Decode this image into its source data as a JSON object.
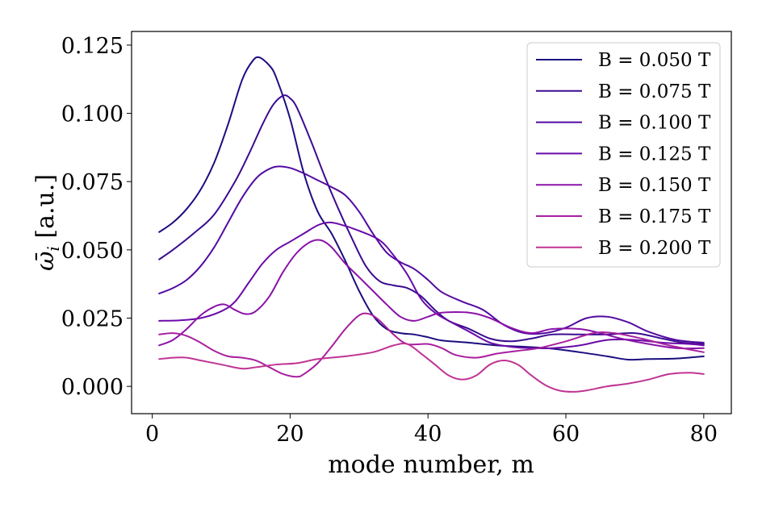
{
  "chart_data": {
    "type": "line",
    "xlabel": "mode number, m",
    "ylabel": "ω̄",
    "ylabel_sub": "i",
    "ylabel_suffix": " [a.u.]",
    "xlim": [
      -3,
      84
    ],
    "ylim": [
      -0.01,
      0.13
    ],
    "xticks": [
      0,
      20,
      40,
      60,
      80
    ],
    "xtick_labels": [
      "0",
      "20",
      "40",
      "60",
      "80"
    ],
    "yticks": [
      0.0,
      0.025,
      0.05,
      0.075,
      0.1,
      0.125
    ],
    "ytick_labels": [
      "0.000",
      "0.025",
      "0.050",
      "0.075",
      "0.100",
      "0.125"
    ],
    "grid": false,
    "legend_position": "top-right",
    "series": [
      {
        "name": "B = 0.050 T",
        "color": "#1b0d80",
        "points": [
          [
            1,
            0.0565
          ],
          [
            3,
            0.06
          ],
          [
            5,
            0.065
          ],
          [
            7,
            0.072
          ],
          [
            9,
            0.082
          ],
          [
            11,
            0.096
          ],
          [
            13,
            0.112
          ],
          [
            14.5,
            0.119
          ],
          [
            15.5,
            0.1205
          ],
          [
            17,
            0.1175
          ],
          [
            18,
            0.113
          ],
          [
            20,
            0.098
          ],
          [
            22,
            0.078
          ],
          [
            24,
            0.064
          ],
          [
            26,
            0.056
          ],
          [
            28,
            0.046
          ],
          [
            30,
            0.035
          ],
          [
            32,
            0.026
          ],
          [
            34,
            0.021
          ],
          [
            36,
            0.0195
          ],
          [
            38,
            0.019
          ],
          [
            40,
            0.018
          ],
          [
            42,
            0.0168
          ],
          [
            46,
            0.016
          ],
          [
            50,
            0.015
          ],
          [
            54,
            0.0145
          ],
          [
            58,
            0.0138
          ],
          [
            62,
            0.0125
          ],
          [
            66,
            0.011
          ],
          [
            69,
            0.0098
          ],
          [
            72,
            0.01
          ],
          [
            76,
            0.0102
          ],
          [
            80,
            0.011
          ]
        ]
      },
      {
        "name": "B = 0.075 T",
        "color": "#3a0c90",
        "points": [
          [
            1,
            0.0465
          ],
          [
            3,
            0.05
          ],
          [
            6,
            0.056
          ],
          [
            9,
            0.063
          ],
          [
            12,
            0.075
          ],
          [
            14,
            0.085
          ],
          [
            16,
            0.096
          ],
          [
            17.5,
            0.103
          ],
          [
            19,
            0.1065
          ],
          [
            20,
            0.1055
          ],
          [
            21,
            0.102
          ],
          [
            23,
            0.09
          ],
          [
            25,
            0.077
          ],
          [
            27,
            0.065
          ],
          [
            29,
            0.054
          ],
          [
            31,
            0.044
          ],
          [
            33,
            0.0385
          ],
          [
            35,
            0.037
          ],
          [
            37,
            0.036
          ],
          [
            39,
            0.033
          ],
          [
            41,
            0.028
          ],
          [
            43,
            0.024
          ],
          [
            46,
            0.021
          ],
          [
            49,
            0.0175
          ],
          [
            52,
            0.0165
          ],
          [
            55,
            0.0175
          ],
          [
            58,
            0.019
          ],
          [
            62,
            0.019
          ],
          [
            66,
            0.019
          ],
          [
            70,
            0.0195
          ],
          [
            74,
            0.0175
          ],
          [
            77,
            0.016
          ],
          [
            80,
            0.0155
          ]
        ]
      },
      {
        "name": "B = 0.100 T",
        "color": "#520aa0",
        "points": [
          [
            1,
            0.034
          ],
          [
            3,
            0.036
          ],
          [
            5,
            0.039
          ],
          [
            7,
            0.044
          ],
          [
            9,
            0.051
          ],
          [
            11,
            0.06
          ],
          [
            13,
            0.069
          ],
          [
            15,
            0.076
          ],
          [
            16.5,
            0.079
          ],
          [
            18,
            0.0805
          ],
          [
            20,
            0.08
          ],
          [
            22,
            0.078
          ],
          [
            24,
            0.0755
          ],
          [
            26,
            0.073
          ],
          [
            28,
            0.07
          ],
          [
            30,
            0.064
          ],
          [
            32,
            0.056
          ],
          [
            34,
            0.049
          ],
          [
            36,
            0.0455
          ],
          [
            38,
            0.043
          ],
          [
            40,
            0.039
          ],
          [
            42,
            0.0345
          ],
          [
            45,
            0.031
          ],
          [
            48,
            0.028
          ],
          [
            51,
            0.0225
          ],
          [
            54,
            0.0195
          ],
          [
            57,
            0.0195
          ],
          [
            60,
            0.0215
          ],
          [
            63,
            0.025
          ],
          [
            66,
            0.0255
          ],
          [
            69,
            0.0235
          ],
          [
            72,
            0.02
          ],
          [
            76,
            0.017
          ],
          [
            80,
            0.016
          ]
        ]
      },
      {
        "name": "B = 0.125 T",
        "color": "#6a0aa8",
        "points": [
          [
            1,
            0.024
          ],
          [
            4,
            0.0242
          ],
          [
            7,
            0.025
          ],
          [
            10,
            0.0275
          ],
          [
            12,
            0.031
          ],
          [
            14,
            0.038
          ],
          [
            16,
            0.045
          ],
          [
            18,
            0.05
          ],
          [
            20,
            0.053
          ],
          [
            22,
            0.056
          ],
          [
            24,
            0.059
          ],
          [
            25.5,
            0.06
          ],
          [
            27,
            0.0595
          ],
          [
            30,
            0.057
          ],
          [
            33,
            0.0535
          ],
          [
            35,
            0.048
          ],
          [
            37,
            0.041
          ],
          [
            39,
            0.032
          ],
          [
            41,
            0.027
          ],
          [
            43,
            0.024
          ],
          [
            46,
            0.02
          ],
          [
            49,
            0.016
          ],
          [
            52,
            0.0145
          ],
          [
            55,
            0.014
          ],
          [
            58,
            0.014
          ],
          [
            62,
            0.015
          ],
          [
            66,
            0.017
          ],
          [
            70,
            0.017
          ],
          [
            74,
            0.016
          ],
          [
            78,
            0.0155
          ],
          [
            80,
            0.015
          ]
        ]
      },
      {
        "name": "B = 0.150 T",
        "color": "#8a12a8",
        "points": [
          [
            1,
            0.015
          ],
          [
            3,
            0.017
          ],
          [
            5,
            0.021
          ],
          [
            7,
            0.026
          ],
          [
            9,
            0.0292
          ],
          [
            10.5,
            0.03
          ],
          [
            12,
            0.028
          ],
          [
            13.5,
            0.0265
          ],
          [
            15,
            0.0275
          ],
          [
            17,
            0.033
          ],
          [
            19,
            0.042
          ],
          [
            21,
            0.049
          ],
          [
            23,
            0.053
          ],
          [
            24.5,
            0.0535
          ],
          [
            26,
            0.051
          ],
          [
            28,
            0.045
          ],
          [
            30,
            0.04
          ],
          [
            32,
            0.035
          ],
          [
            34,
            0.03
          ],
          [
            36,
            0.0255
          ],
          [
            38,
            0.024
          ],
          [
            40,
            0.0255
          ],
          [
            42,
            0.027
          ],
          [
            46,
            0.027
          ],
          [
            49,
            0.025
          ],
          [
            52,
            0.0215
          ],
          [
            55,
            0.0195
          ],
          [
            58,
            0.021
          ],
          [
            62,
            0.021
          ],
          [
            65,
            0.0195
          ],
          [
            68,
            0.0175
          ],
          [
            72,
            0.0155
          ],
          [
            76,
            0.014
          ],
          [
            80,
            0.014
          ]
        ]
      },
      {
        "name": "B = 0.175 T",
        "color": "#a81f9f",
        "points": [
          [
            1,
            0.019
          ],
          [
            3,
            0.0195
          ],
          [
            5,
            0.0185
          ],
          [
            7,
            0.016
          ],
          [
            9,
            0.013
          ],
          [
            11,
            0.011
          ],
          [
            13,
            0.0105
          ],
          [
            15,
            0.0095
          ],
          [
            17,
            0.007
          ],
          [
            19,
            0.0045
          ],
          [
            21,
            0.0035
          ],
          [
            22,
            0.0045
          ],
          [
            24,
            0.0085
          ],
          [
            26,
            0.0145
          ],
          [
            28,
            0.021
          ],
          [
            30,
            0.026
          ],
          [
            31.5,
            0.0265
          ],
          [
            33,
            0.024
          ],
          [
            35,
            0.019
          ],
          [
            37,
            0.0155
          ],
          [
            40,
            0.0155
          ],
          [
            42,
            0.014
          ],
          [
            44,
            0.0115
          ],
          [
            47,
            0.0105
          ],
          [
            50,
            0.012
          ],
          [
            53,
            0.013
          ],
          [
            56,
            0.014
          ],
          [
            60,
            0.0165
          ],
          [
            64,
            0.0195
          ],
          [
            67,
            0.0195
          ],
          [
            71,
            0.0175
          ],
          [
            75,
            0.015
          ],
          [
            80,
            0.0125
          ]
        ]
      },
      {
        "name": "B = 0.200 T",
        "color": "#bf3493",
        "points": [
          [
            1,
            0.01
          ],
          [
            3,
            0.0105
          ],
          [
            5,
            0.0105
          ],
          [
            7,
            0.0095
          ],
          [
            10,
            0.008
          ],
          [
            13,
            0.0065
          ],
          [
            15,
            0.007
          ],
          [
            18,
            0.008
          ],
          [
            21,
            0.0085
          ],
          [
            24,
            0.01
          ],
          [
            28,
            0.011
          ],
          [
            32,
            0.0125
          ],
          [
            35,
            0.015
          ],
          [
            37,
            0.0155
          ],
          [
            39,
            0.012
          ],
          [
            41,
            0.008
          ],
          [
            43,
            0.004
          ],
          [
            45,
            0.0025
          ],
          [
            47,
            0.004
          ],
          [
            49,
            0.008
          ],
          [
            51,
            0.0095
          ],
          [
            53,
            0.008
          ],
          [
            55,
            0.004
          ],
          [
            57,
            0.0005
          ],
          [
            59,
            -0.0015
          ],
          [
            61,
            -0.002
          ],
          [
            63,
            -0.0015
          ],
          [
            66,
            0.0
          ],
          [
            69,
            0.001
          ],
          [
            72,
            0.0025
          ],
          [
            75,
            0.0045
          ],
          [
            78,
            0.005
          ],
          [
            80,
            0.0045
          ]
        ]
      }
    ]
  }
}
